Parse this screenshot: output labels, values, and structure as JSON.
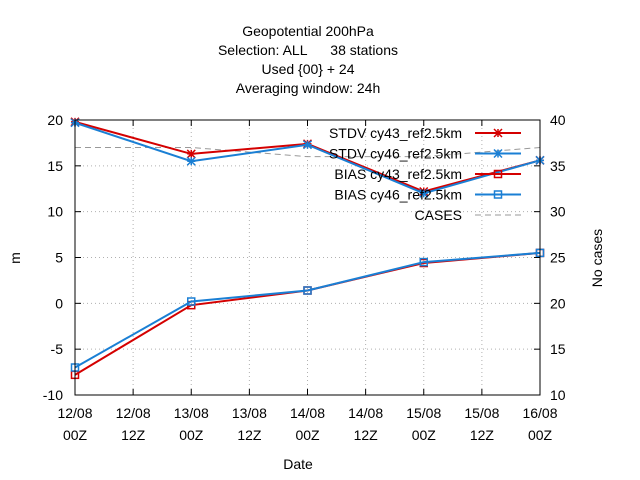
{
  "chart_data": {
    "type": "line",
    "title_lines": [
      "Geopotential 200hPa",
      "Selection: ALL      38 stations",
      "Used {00} + 24",
      "Averaging window: 24h"
    ],
    "xlabel": "Date",
    "ylabel": "m",
    "y2label": "No cases",
    "x_ticks": [
      [
        "12/08",
        "00Z"
      ],
      [
        "12/08",
        "12Z"
      ],
      [
        "13/08",
        "00Z"
      ],
      [
        "13/08",
        "12Z"
      ],
      [
        "14/08",
        "00Z"
      ],
      [
        "14/08",
        "12Z"
      ],
      [
        "15/08",
        "00Z"
      ],
      [
        "15/08",
        "12Z"
      ],
      [
        "16/08",
        "00Z"
      ]
    ],
    "y_ticks": [
      "-10",
      "-5",
      "0",
      "5",
      "10",
      "15",
      "20"
    ],
    "y2_ticks": [
      "10",
      "15",
      "20",
      "25",
      "30",
      "35",
      "40"
    ],
    "ylim": [
      -10,
      20
    ],
    "y2lim": [
      10,
      40
    ],
    "xlim_hours": [
      0,
      96
    ],
    "grid": true,
    "legend_position": "top-right",
    "series": [
      {
        "name": "STDV cy43_ref2.5km",
        "axis": "y",
        "color": "#d40000",
        "marker": "star",
        "x_hours": [
          0,
          24,
          48,
          72,
          96
        ],
        "values": [
          19.8,
          16.3,
          17.4,
          12.2,
          15.6
        ]
      },
      {
        "name": "STDV cy46_ref2.5km",
        "axis": "y",
        "color": "#1a7fd4",
        "marker": "star",
        "x_hours": [
          0,
          24,
          48,
          72,
          96
        ],
        "values": [
          19.7,
          15.5,
          17.3,
          12.0,
          15.6
        ]
      },
      {
        "name": "BIAS cy43_ref2.5km",
        "axis": "y",
        "color": "#d40000",
        "marker": "square",
        "x_hours": [
          0,
          24,
          48,
          72,
          96
        ],
        "values": [
          -7.8,
          -0.2,
          1.4,
          4.4,
          5.5
        ]
      },
      {
        "name": "BIAS cy46_ref2.5km",
        "axis": "y",
        "color": "#1a7fd4",
        "marker": "square",
        "x_hours": [
          0,
          24,
          48,
          72,
          96
        ],
        "values": [
          -7.0,
          0.2,
          1.4,
          4.5,
          5.5
        ]
      },
      {
        "name": "CASES",
        "axis": "y2",
        "color": "#999999",
        "marker": "none",
        "dashed": true,
        "x_hours": [
          0,
          24,
          48,
          72,
          96
        ],
        "values": [
          37,
          37,
          36,
          36,
          37
        ]
      }
    ]
  }
}
